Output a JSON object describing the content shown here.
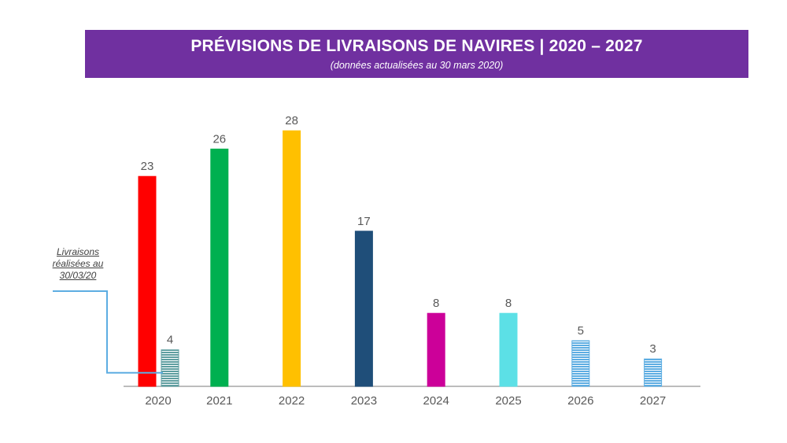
{
  "title": {
    "main": "PRÉVISIONS DE LIVRAISONS DE NAVIRES | 2020 – 2027",
    "subtitle": "(données actualisées au 30 mars 2020)"
  },
  "annotation": {
    "lines": [
      "Livraisons",
      "réalisées au",
      "30/03/20"
    ]
  },
  "chart_data": {
    "type": "bar",
    "title": "PRÉVISIONS DE LIVRAISONS DE NAVIRES | 2020 – 2027",
    "subtitle": "(données actualisées au 30 mars 2020)",
    "xlabel": "",
    "ylabel": "",
    "ylim": [
      0,
      30
    ],
    "grid": false,
    "categories": [
      "2020",
      "2021",
      "2022",
      "2023",
      "2024",
      "2025",
      "2026",
      "2027"
    ],
    "series": [
      {
        "name": "Prévisions",
        "values": [
          23,
          26,
          28,
          17,
          8,
          8,
          5,
          3
        ],
        "colors": [
          "#ff0000",
          "#00b050",
          "#ffc000",
          "#1f4e79",
          "#cc0099",
          "#5ce0e6",
          "#5dade2",
          "#5dade2"
        ],
        "patterns": [
          "solid",
          "solid",
          "solid",
          "solid",
          "solid",
          "solid",
          "stripes",
          "stripes"
        ]
      },
      {
        "name": "Livraisons réalisées au 30/03/20",
        "category": "2020",
        "value": 4,
        "color": "#5f9ea0",
        "pattern": "stripes"
      }
    ]
  },
  "colors": {
    "banner": "#7030a0",
    "axis": "#a6a6a6",
    "label_text": "#595959",
    "connector": "#5dade2"
  }
}
